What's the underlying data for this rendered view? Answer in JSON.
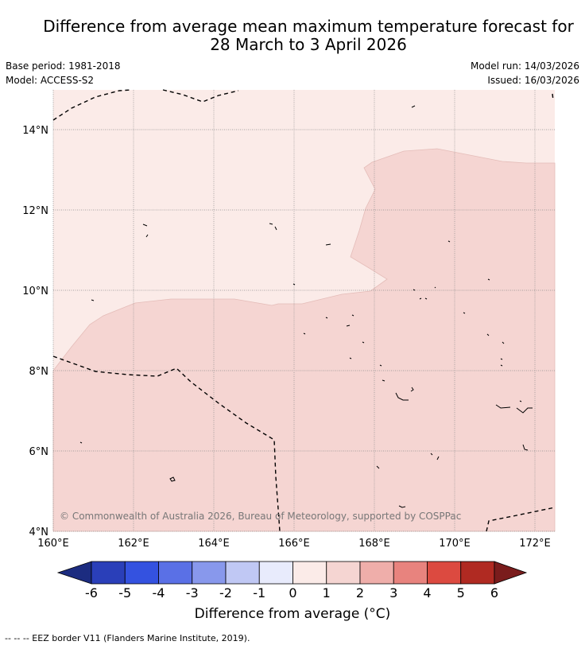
{
  "header": {
    "title_line1": "Difference from average mean maximum temperature forecast for",
    "title_line2": "28 March to 3 April 2026",
    "base_period": "Base period: 1981-2018",
    "model": "Model: ACCESS-S2",
    "model_run": "Model run: 14/03/2026",
    "issued": "Issued: 16/03/2026"
  },
  "map": {
    "lat_labels": [
      "14°N",
      "12°N",
      "10°N",
      "8°N",
      "6°N",
      "4°N"
    ],
    "lon_labels": [
      "160°E",
      "162°E",
      "164°E",
      "166°E",
      "168°E",
      "170°E",
      "172°E"
    ],
    "copyright": "© Commonwealth of Australia 2026, Bureau of Meteorology, supported by COSPPac",
    "colors": {
      "anomaly_0_1": "#fbebe8",
      "anomaly_1_2": "#f5d5d2",
      "border": "#000000"
    }
  },
  "colorbar": {
    "ticks": [
      "-6",
      "-5",
      "-4",
      "-3",
      "-2",
      "-1",
      "0",
      "1",
      "2",
      "3",
      "4",
      "5",
      "6"
    ],
    "colors": [
      "#1c2c80",
      "#2a3fb9",
      "#3452e0",
      "#5a70e6",
      "#8898ec",
      "#c0c8f4",
      "#e8ebfc",
      "#fbebe8",
      "#f5d5d2",
      "#efaeaa",
      "#e8837e",
      "#dc4a40",
      "#b02a22",
      "#7a1c1c"
    ],
    "label": "Difference from average (°C)"
  },
  "footer": {
    "legend_text": "-- -- -- EEZ border V11 (Flanders Marine Institute, 2019)."
  }
}
